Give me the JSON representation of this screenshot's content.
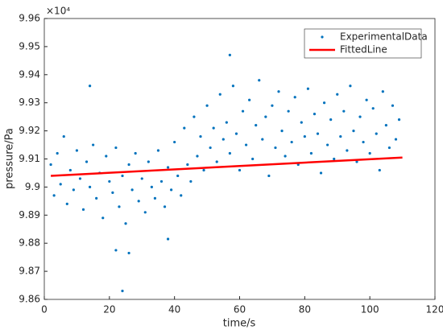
{
  "chart_data": {
    "type": "scatter",
    "xlabel": "time/s",
    "ylabel": "pressure/Pa",
    "y_exponent": "×10⁴",
    "xlim": [
      0,
      120
    ],
    "xticks": [
      0,
      20,
      40,
      60,
      80,
      100,
      120
    ],
    "ylim": [
      9.86,
      9.96
    ],
    "yticks": [
      9.86,
      9.87,
      9.88,
      9.89,
      9.9,
      {
        "value": 9.91,
        "label": "9.91"
      },
      9.92,
      9.93,
      9.94,
      9.95,
      9.96
    ],
    "legend": "upper right",
    "series": [
      {
        "name": "ExperimentalData",
        "type": "scatter",
        "color": "#0072bd",
        "x": [
          2,
          3,
          4,
          5,
          6,
          7,
          8,
          9,
          10,
          11,
          12,
          13,
          14,
          15,
          16,
          17,
          18,
          19,
          20,
          21,
          22,
          23,
          24,
          25,
          26,
          27,
          28,
          29,
          30,
          31,
          32,
          33,
          34,
          35,
          36,
          37,
          38,
          39,
          40,
          41,
          42,
          43,
          44,
          45,
          46,
          47,
          48,
          49,
          50,
          51,
          52,
          53,
          54,
          55,
          56,
          57,
          58,
          59,
          60,
          61,
          62,
          63,
          64,
          65,
          66,
          67,
          68,
          69,
          70,
          71,
          72,
          73,
          74,
          75,
          76,
          77,
          78,
          79,
          80,
          81,
          82,
          83,
          84,
          85,
          86,
          87,
          88,
          89,
          90,
          91,
          92,
          93,
          94,
          95,
          96,
          97,
          98,
          99,
          100,
          101,
          102,
          103,
          104,
          105,
          106,
          107,
          108,
          109,
          24,
          22,
          26,
          14,
          57,
          38
        ],
        "values": [
          9.908,
          9.897,
          9.912,
          9.901,
          9.918,
          9.894,
          9.906,
          9.899,
          9.913,
          9.903,
          9.892,
          9.909,
          9.9,
          9.915,
          9.896,
          9.905,
          9.889,
          9.911,
          9.902,
          9.898,
          9.914,
          9.893,
          9.904,
          9.887,
          9.908,
          9.899,
          9.912,
          9.895,
          9.903,
          9.891,
          9.909,
          9.9,
          9.896,
          9.913,
          9.902,
          9.893,
          9.907,
          9.899,
          9.916,
          9.904,
          9.897,
          9.921,
          9.908,
          9.902,
          9.925,
          9.911,
          9.918,
          9.906,
          9.929,
          9.914,
          9.921,
          9.909,
          9.933,
          9.917,
          9.923,
          9.912,
          9.936,
          9.919,
          9.906,
          9.927,
          9.915,
          9.931,
          9.91,
          9.922,
          9.938,
          9.917,
          9.925,
          9.904,
          9.929,
          9.914,
          9.934,
          9.92,
          9.911,
          9.927,
          9.916,
          9.932,
          9.908,
          9.923,
          9.918,
          9.935,
          9.912,
          9.926,
          9.919,
          9.905,
          9.93,
          9.915,
          9.924,
          9.91,
          9.933,
          9.918,
          9.927,
          9.913,
          9.936,
          9.92,
          9.909,
          9.925,
          9.916,
          9.931,
          9.912,
          9.928,
          9.919,
          9.906,
          9.934,
          9.922,
          9.914,
          9.929,
          9.917,
          9.924,
          9.863,
          9.8775,
          9.8765,
          9.936,
          9.947,
          9.8815
        ]
      },
      {
        "name": "FittedLine",
        "type": "line",
        "color": "#ff0000",
        "x": [
          2,
          110
        ],
        "values": [
          9.904,
          9.9105
        ]
      }
    ]
  }
}
